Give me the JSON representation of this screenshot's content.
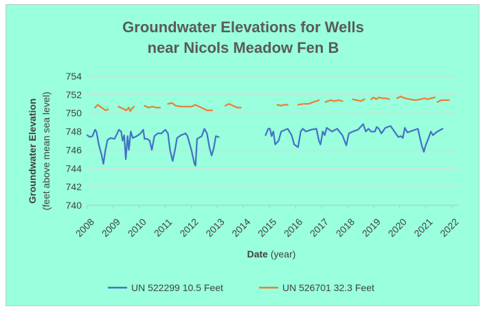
{
  "chart_data": {
    "type": "line",
    "title_lines": [
      "Groundwater Elevations for Wells",
      "near Nicols Meadow Fen B"
    ],
    "ylabel_line1": "Groundwater Elevation",
    "ylabel_line2": "(feet above mean sea level)",
    "xlabel_bold": "Date",
    "xlabel_rest": " (year)",
    "xlim": [
      2008,
      2022.25
    ],
    "ylim": [
      740,
      754
    ],
    "y_ticks": [
      740,
      742,
      744,
      746,
      748,
      750,
      752,
      754
    ],
    "y_tick_labels": [
      "740",
      "742",
      "744",
      "746",
      "748",
      "750",
      "752",
      "754"
    ],
    "x_ticks": [
      2008,
      2009,
      2010,
      2011,
      2012,
      2013,
      2014,
      2015,
      2016,
      2017,
      2018,
      2019,
      2020,
      2021,
      2022
    ],
    "x_tick_labels": [
      "2008",
      "2009",
      "2010",
      "2011",
      "2012",
      "2013",
      "2014",
      "2015",
      "2016",
      "2017",
      "2018",
      "2019",
      "2020",
      "2021",
      "2022"
    ],
    "grid": true,
    "legend_position": "bottom",
    "series": [
      {
        "name": "UN 522299 10.5 Feet",
        "color": "#4472c4",
        "segments": [
          [
            [
              2008.0,
              747.6
            ],
            [
              2008.1,
              747.4
            ],
            [
              2008.2,
              747.5
            ],
            [
              2008.3,
              748.2
            ],
            [
              2008.35,
              748.0
            ],
            [
              2008.45,
              746.5
            ],
            [
              2008.55,
              745.5
            ],
            [
              2008.62,
              744.5
            ],
            [
              2008.7,
              746.0
            ],
            [
              2008.78,
              747.1
            ],
            [
              2008.9,
              747.3
            ],
            [
              2009.05,
              747.2
            ],
            [
              2009.15,
              747.8
            ],
            [
              2009.22,
              748.2
            ],
            [
              2009.3,
              748.0
            ],
            [
              2009.36,
              747.0
            ],
            [
              2009.42,
              747.6
            ],
            [
              2009.48,
              745.0
            ],
            [
              2009.55,
              747.5
            ],
            [
              2009.6,
              746.0
            ],
            [
              2009.67,
              748.0
            ],
            [
              2009.75,
              747.3
            ],
            [
              2009.9,
              747.5
            ],
            [
              2010.05,
              747.8
            ],
            [
              2010.15,
              748.2
            ],
            [
              2010.2,
              747.2
            ],
            [
              2010.3,
              747.2
            ],
            [
              2010.4,
              747.0
            ],
            [
              2010.48,
              746.0
            ],
            [
              2010.58,
              747.5
            ],
            [
              2010.7,
              747.8
            ],
            [
              2010.85,
              747.8
            ],
            [
              2011.0,
              748.2
            ],
            [
              2011.1,
              747.8
            ],
            [
              2011.18,
              746.0
            ],
            [
              2011.28,
              744.8
            ],
            [
              2011.37,
              746.0
            ],
            [
              2011.45,
              747.3
            ],
            [
              2011.6,
              747.6
            ],
            [
              2011.78,
              747.8
            ],
            [
              2011.85,
              747.5
            ],
            [
              2012.0,
              746.0
            ],
            [
              2012.12,
              744.5
            ],
            [
              2012.16,
              744.3
            ],
            [
              2012.22,
              747.2
            ],
            [
              2012.4,
              747.5
            ],
            [
              2012.5,
              748.3
            ],
            [
              2012.6,
              747.8
            ],
            [
              2012.7,
              746.2
            ],
            [
              2012.78,
              745.4
            ],
            [
              2012.86,
              746.2
            ],
            [
              2012.94,
              747.5
            ],
            [
              2013.05,
              747.4
            ]
          ],
          [
            [
              2014.85,
              747.6
            ],
            [
              2014.95,
              748.3
            ],
            [
              2015.02,
              748.3
            ],
            [
              2015.08,
              747.5
            ],
            [
              2015.15,
              748.0
            ],
            [
              2015.22,
              746.6
            ],
            [
              2015.35,
              747.0
            ],
            [
              2015.45,
              748.0
            ],
            [
              2015.7,
              748.3
            ],
            [
              2015.85,
              747.6
            ],
            [
              2015.95,
              746.6
            ],
            [
              2016.1,
              746.3
            ],
            [
              2016.2,
              748.0
            ],
            [
              2016.28,
              748.3
            ],
            [
              2016.4,
              748.0
            ],
            [
              2016.6,
              748.2
            ],
            [
              2016.8,
              748.3
            ],
            [
              2016.9,
              747.0
            ],
            [
              2016.96,
              746.6
            ],
            [
              2017.05,
              748.0
            ],
            [
              2017.12,
              747.6
            ],
            [
              2017.2,
              748.4
            ],
            [
              2017.4,
              748.0
            ],
            [
              2017.6,
              748.3
            ],
            [
              2017.8,
              747.6
            ],
            [
              2017.95,
              746.5
            ],
            [
              2018.05,
              747.8
            ],
            [
              2018.2,
              748.0
            ],
            [
              2018.4,
              748.2
            ],
            [
              2018.6,
              748.8
            ],
            [
              2018.7,
              748.0
            ],
            [
              2018.8,
              748.3
            ],
            [
              2018.9,
              748.0
            ],
            [
              2019.05,
              748.0
            ],
            [
              2019.12,
              748.5
            ],
            [
              2019.2,
              748.3
            ],
            [
              2019.3,
              747.8
            ],
            [
              2019.45,
              748.4
            ],
            [
              2019.65,
              748.6
            ],
            [
              2019.85,
              747.8
            ],
            [
              2019.95,
              747.4
            ],
            [
              2020.05,
              747.5
            ],
            [
              2020.12,
              747.3
            ],
            [
              2020.2,
              748.4
            ],
            [
              2020.3,
              747.9
            ],
            [
              2020.5,
              748.1
            ],
            [
              2020.7,
              748.3
            ],
            [
              2020.85,
              746.5
            ],
            [
              2020.93,
              745.8
            ],
            [
              2021.0,
              746.5
            ],
            [
              2021.1,
              747.2
            ],
            [
              2021.2,
              748.0
            ],
            [
              2021.28,
              747.6
            ],
            [
              2021.45,
              748.0
            ],
            [
              2021.65,
              748.3
            ]
          ]
        ]
      },
      {
        "name": "UN 526701 32.3 Feet",
        "color": "#ed7d31",
        "segments": [
          [
            [
              2008.3,
              750.6
            ],
            [
              2008.4,
              750.9
            ],
            [
              2008.5,
              750.7
            ],
            [
              2008.6,
              750.5
            ],
            [
              2008.7,
              750.3
            ],
            [
              2008.8,
              750.4
            ]
          ],
          [
            [
              2009.2,
              750.7
            ],
            [
              2009.35,
              750.5
            ],
            [
              2009.5,
              750.3
            ],
            [
              2009.6,
              750.6
            ],
            [
              2009.65,
              750.2
            ],
            [
              2009.72,
              750.5
            ],
            [
              2009.8,
              750.7
            ]
          ],
          [
            [
              2010.2,
              750.8
            ],
            [
              2010.35,
              750.6
            ],
            [
              2010.5,
              750.7
            ],
            [
              2010.65,
              750.6
            ],
            [
              2010.8,
              750.6
            ]
          ],
          [
            [
              2011.1,
              751.0
            ],
            [
              2011.25,
              751.1
            ],
            [
              2011.4,
              750.8
            ],
            [
              2011.6,
              750.7
            ],
            [
              2011.8,
              750.7
            ],
            [
              2012.0,
              750.7
            ],
            [
              2012.15,
              750.9
            ],
            [
              2012.3,
              750.7
            ],
            [
              2012.45,
              750.5
            ],
            [
              2012.6,
              750.3
            ],
            [
              2012.8,
              750.3
            ]
          ],
          [
            [
              2013.3,
              750.8
            ],
            [
              2013.45,
              751.0
            ],
            [
              2013.6,
              750.8
            ],
            [
              2013.75,
              750.6
            ],
            [
              2013.9,
              750.6
            ]
          ],
          [
            [
              2015.3,
              750.9
            ],
            [
              2015.45,
              750.8
            ],
            [
              2015.55,
              750.9
            ],
            [
              2015.7,
              750.9
            ]
          ],
          [
            [
              2016.1,
              750.9
            ],
            [
              2016.3,
              751.0
            ],
            [
              2016.5,
              751.0
            ],
            [
              2016.7,
              751.2
            ],
            [
              2016.8,
              751.3
            ],
            [
              2016.9,
              751.4
            ]
          ],
          [
            [
              2017.15,
              751.2
            ],
            [
              2017.35,
              751.4
            ],
            [
              2017.5,
              751.3
            ],
            [
              2017.65,
              751.4
            ],
            [
              2017.8,
              751.3
            ]
          ],
          [
            [
              2018.2,
              751.5
            ],
            [
              2018.35,
              751.4
            ],
            [
              2018.5,
              751.3
            ],
            [
              2018.65,
              751.5
            ]
          ],
          [
            [
              2018.9,
              751.5
            ],
            [
              2019.0,
              751.7
            ],
            [
              2019.1,
              751.5
            ],
            [
              2019.2,
              751.7
            ],
            [
              2019.35,
              751.6
            ],
            [
              2019.5,
              751.6
            ],
            [
              2019.6,
              751.5
            ]
          ],
          [
            [
              2019.9,
              751.6
            ],
            [
              2020.05,
              751.8
            ],
            [
              2020.2,
              751.6
            ],
            [
              2020.4,
              751.5
            ],
            [
              2020.6,
              751.4
            ],
            [
              2020.8,
              751.5
            ],
            [
              2020.95,
              751.6
            ],
            [
              2021.1,
              751.5
            ],
            [
              2021.2,
              751.6
            ],
            [
              2021.35,
              751.7
            ]
          ],
          [
            [
              2021.45,
              751.2
            ],
            [
              2021.6,
              751.4
            ],
            [
              2021.75,
              751.4
            ],
            [
              2021.9,
              751.4
            ]
          ]
        ]
      }
    ]
  },
  "colors": {
    "background": "#99ffdd",
    "grid": "#d9d9d9",
    "axis": "#bfbfbf",
    "text": "#404040",
    "title": "#5a5a5a"
  }
}
